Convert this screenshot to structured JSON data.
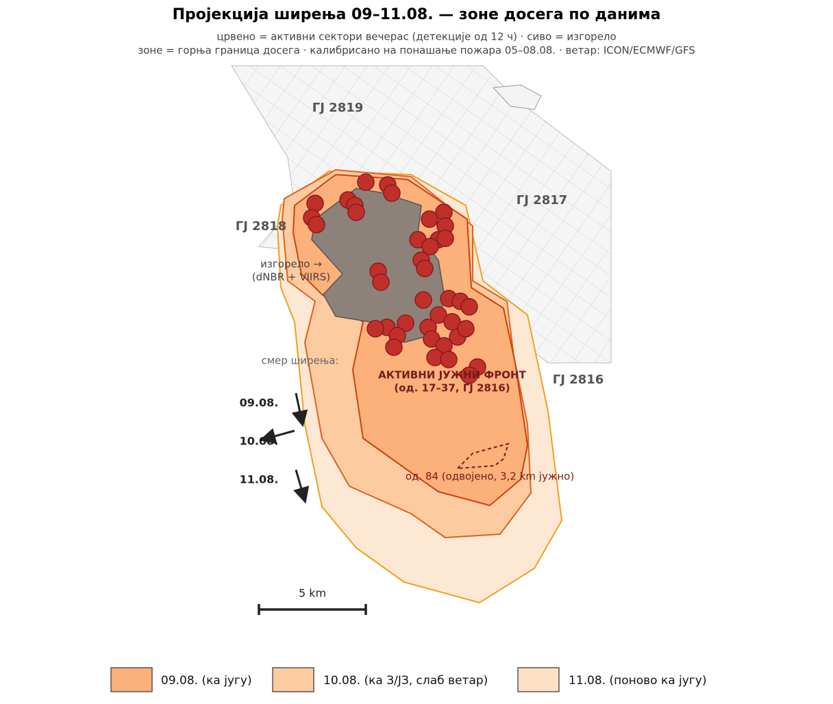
{
  "header": {
    "title": "Пројекција ширења 09–11.08. — зоне досега по данима",
    "subtitle": [
      "црвено = активни сектори вечерас (детекције од 12 ч) · сиво = изгорело",
      "зоне = горња граница досега · калибрисано на понашање пожара 05–08.08. · ветар: ICON/ECMWF/GFS"
    ]
  },
  "map": {
    "units": [
      "ГЈ 2819",
      "ГЈ 2817",
      "ГЈ 2818",
      "ГЈ 2816"
    ],
    "burned_label": [
      "изгорело →",
      "(dNBR + VIIRS)"
    ],
    "direction_title": "смер ширења:",
    "directions": [
      "09.08.",
      "10.08.",
      "11.08."
    ],
    "front_label": [
      "АКТИВНИ ЈУЖНИ ФРОНТ",
      "(од. 17–37, ГЈ 2816)"
    ],
    "detached_label": "од. 84 (одвојено, 3,2 km јужно)",
    "scale_label": "5 km"
  },
  "legend": [
    "09.08. (ка југу)",
    "10.08. (ка З/ЈЗ, слаб ветар)",
    "11.08. (поново ка југу)"
  ]
}
